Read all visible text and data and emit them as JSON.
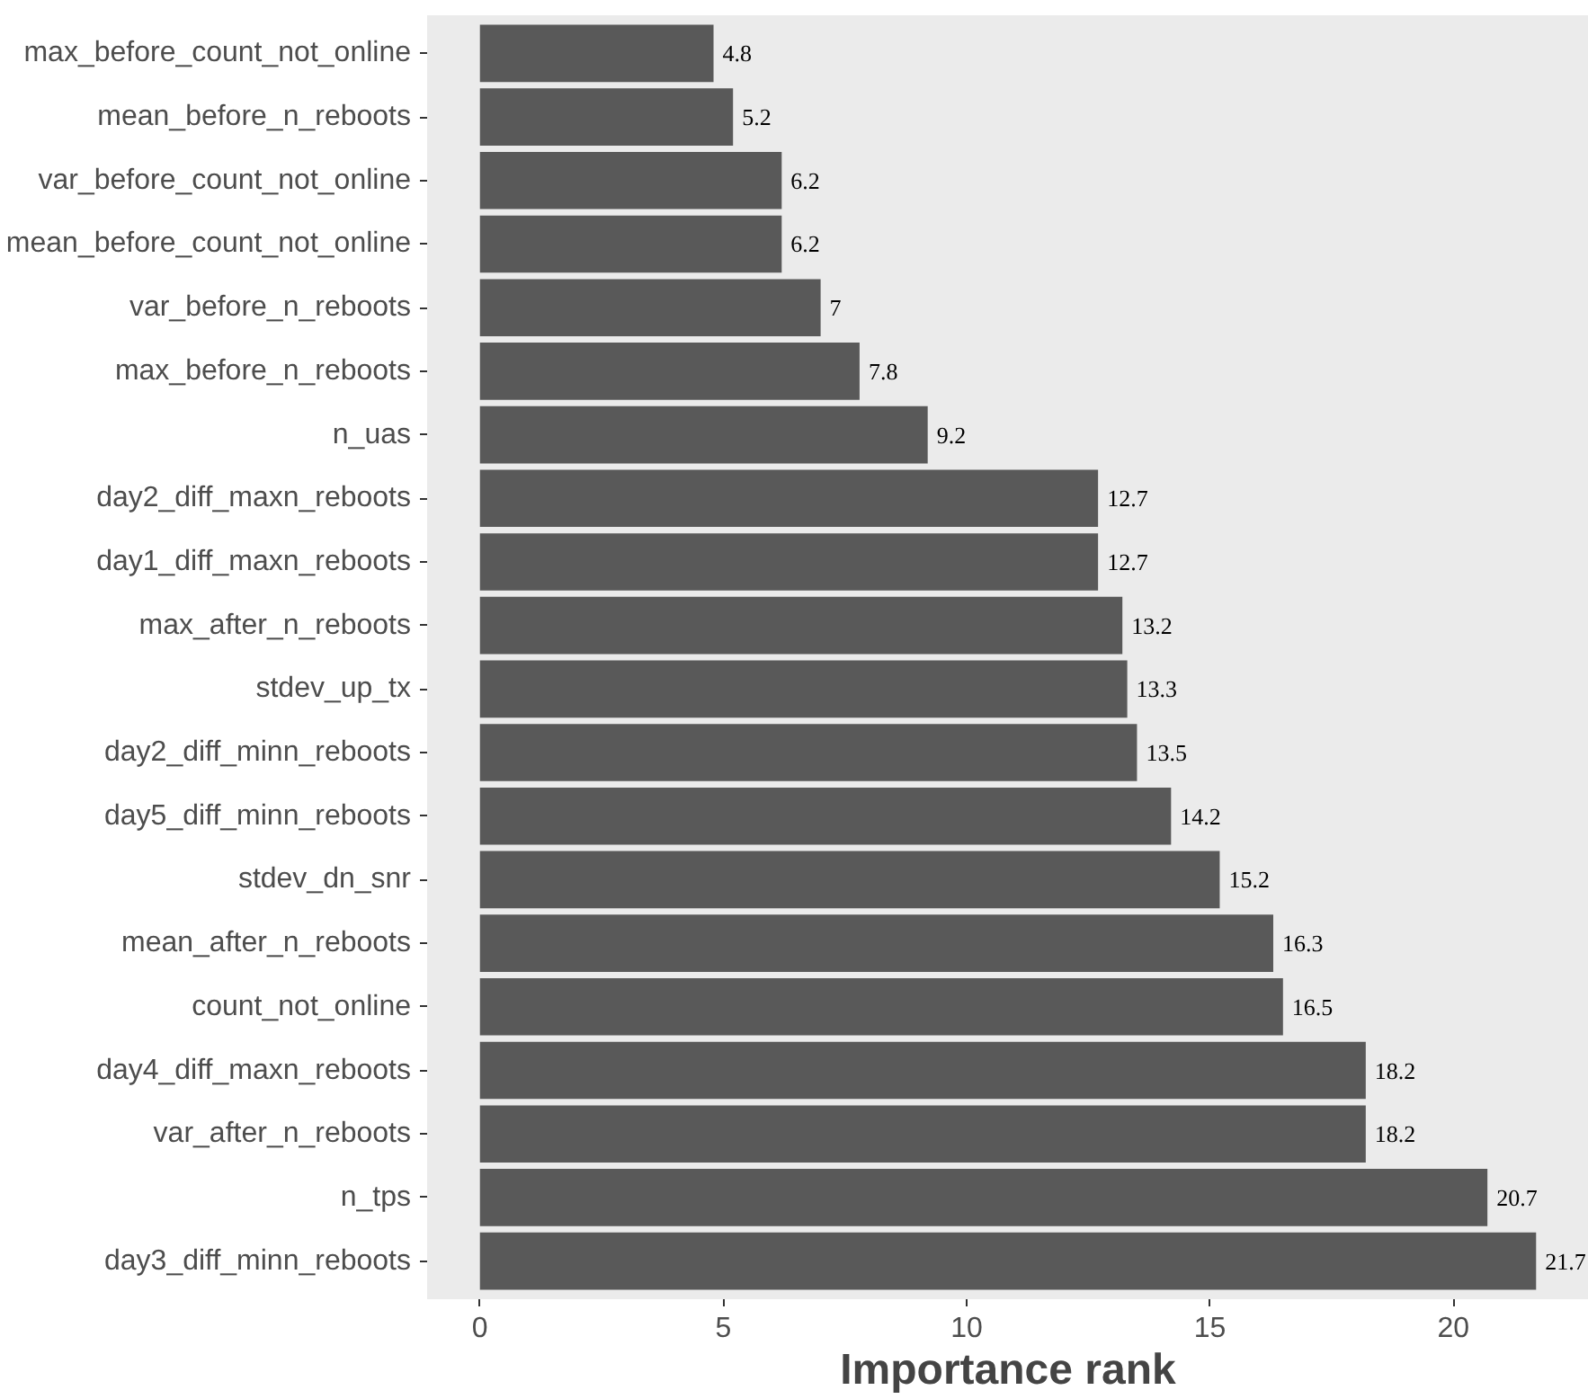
{
  "chart_data": {
    "type": "bar",
    "orientation": "horizontal",
    "xlabel": "Importance rank",
    "categories": [
      "max_before_count_not_online",
      "mean_before_n_reboots",
      "var_before_count_not_online",
      "mean_before_count_not_online",
      "var_before_n_reboots",
      "max_before_n_reboots",
      "n_uas",
      "day2_diff_maxn_reboots",
      "day1_diff_maxn_reboots",
      "max_after_n_reboots",
      "stdev_up_tx",
      "day2_diff_minn_reboots",
      "day5_diff_minn_reboots",
      "stdev_dn_snr",
      "mean_after_n_reboots",
      "count_not_online",
      "day4_diff_maxn_reboots",
      "var_after_n_reboots",
      "n_tps",
      "day3_diff_minn_reboots"
    ],
    "values": [
      4.8,
      5.2,
      6.2,
      6.2,
      7,
      7.8,
      9.2,
      12.7,
      12.7,
      13.2,
      13.3,
      13.5,
      14.2,
      15.2,
      16.3,
      16.5,
      18.2,
      18.2,
      20.7,
      21.7
    ],
    "color": "#595959",
    "data_labels": true,
    "xlim": [
      -1.085,
      22.785
    ],
    "xticks": [
      0,
      5,
      10,
      15,
      20
    ],
    "grid": false
  }
}
